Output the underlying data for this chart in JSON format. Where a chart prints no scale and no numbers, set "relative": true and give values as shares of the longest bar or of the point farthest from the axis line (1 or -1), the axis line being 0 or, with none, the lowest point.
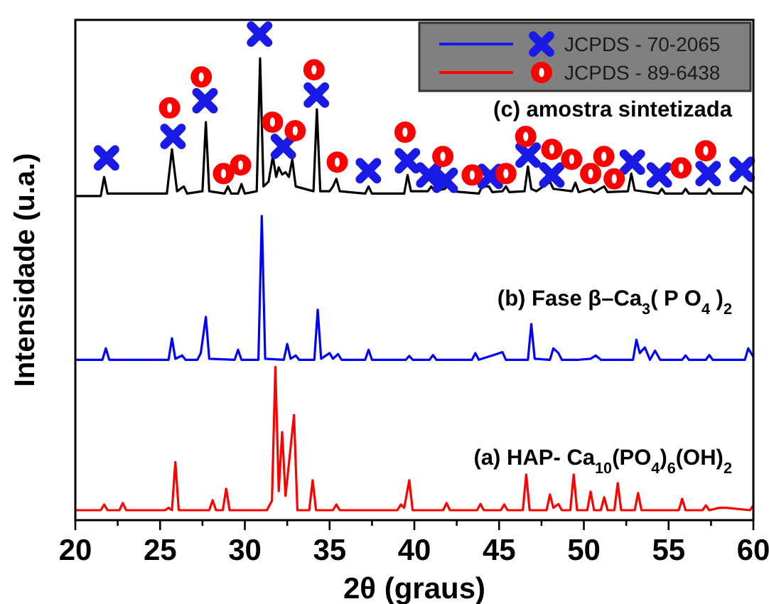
{
  "chart_data": {
    "type": "line",
    "relative": true,
    "xlabel": "2θ (graus)",
    "ylabel": "Intensidade (u.a.)",
    "xlim": [
      20,
      60
    ],
    "xticks": [
      20,
      {
        "value": 22.5,
        "label": null
      },
      25,
      {
        "value": 27.5,
        "label": null
      },
      30,
      {
        "value": 32.5,
        "label": null
      },
      35,
      {
        "value": 37.5,
        "label": null
      },
      40,
      {
        "value": 42.5,
        "label": null
      },
      45,
      {
        "value": 47.5,
        "label": null
      },
      50,
      {
        "value": 52.5,
        "label": null
      },
      55,
      {
        "value": 57.5,
        "label": null
      },
      60
    ],
    "legend": "top right",
    "grid": false,
    "line_style": "solid",
    "annotations": [
      "(c) amostra sintetizada",
      "(b) Fase β–Ca$_{3}$( P O$_{4}$ )$_{2}$",
      "(a) HAP- Ca$_{10}$(PO$_{4}$)$_{6}$(OH)$_{2}$"
    ],
    "series": [
      {
        "color": "#000000",
        "x": [
          20,
          21.5,
          21.7,
          21.9,
          25.4,
          25.7,
          26.0,
          26.4,
          26.6,
          27.5,
          27.7,
          27.9,
          28.8,
          29.0,
          29.2,
          29.6,
          29.8,
          30.0,
          30.7,
          30.9,
          31.1,
          31.4,
          31.65,
          31.85,
          32.0,
          32.2,
          32.4,
          32.6,
          32.8,
          33.0,
          34.05,
          34.25,
          34.45,
          35.0,
          35.2,
          35.4,
          35.6,
          37.1,
          37.3,
          37.5,
          39.4,
          39.6,
          39.8,
          40.8,
          41.0,
          41.2,
          41.8,
          42.0,
          42.2,
          43.8,
          44.0,
          44.4,
          44.6,
          45.2,
          45.4,
          45.6,
          46.5,
          46.7,
          46.9,
          47.2,
          48.0,
          48.2,
          49.3,
          49.5,
          49.7,
          50.4,
          50.6,
          51.2,
          51.4,
          52.6,
          52.8,
          53.0,
          54.4,
          54.6,
          54.8,
          55.8,
          56.0,
          56.2,
          57.2,
          57.4,
          57.6,
          59.3,
          59.5,
          60
        ],
        "values": [
          0.66,
          0.66,
          0.7,
          0.665,
          0.665,
          0.758,
          0.67,
          0.68,
          0.665,
          0.67,
          0.815,
          0.67,
          0.665,
          0.68,
          0.665,
          0.665,
          0.685,
          0.665,
          0.67,
          0.949,
          0.68,
          0.69,
          0.743,
          0.7,
          0.72,
          0.705,
          0.71,
          0.7,
          0.737,
          0.68,
          0.67,
          0.842,
          0.67,
          0.67,
          0.68,
          0.696,
          0.67,
          0.665,
          0.68,
          0.665,
          0.665,
          0.704,
          0.67,
          0.67,
          0.68,
          0.67,
          0.675,
          0.685,
          0.67,
          0.665,
          0.68,
          0.68,
          0.668,
          0.67,
          0.68,
          0.668,
          0.67,
          0.722,
          0.675,
          0.67,
          0.69,
          0.675,
          0.67,
          0.688,
          0.668,
          0.675,
          0.668,
          0.68,
          0.668,
          0.67,
          0.707,
          0.672,
          0.665,
          0.675,
          0.665,
          0.665,
          0.675,
          0.665,
          0.665,
          0.675,
          0.665,
          0.665,
          0.68,
          0.665
        ]
      },
      {
        "color": "#0000ff",
        "x": [
          20,
          21.6,
          21.8,
          22.0,
          25.5,
          25.7,
          25.9,
          26.3,
          26.5,
          27.2,
          27.4,
          27.7,
          27.9,
          29.4,
          29.6,
          29.8,
          30.8,
          31.0,
          31.2,
          32.3,
          32.5,
          32.7,
          33.0,
          33.2,
          34.1,
          34.3,
          34.5,
          35.0,
          35.2,
          35.5,
          35.7,
          37.1,
          37.3,
          37.5,
          39.5,
          39.7,
          39.9,
          40.9,
          41.1,
          41.3,
          43.4,
          43.6,
          43.8,
          44.6,
          45.2,
          45.4,
          46.7,
          46.9,
          47.1,
          48.0,
          48.2,
          48.5,
          48.7,
          49.7,
          50.4,
          50.7,
          51.0,
          52.9,
          53.1,
          53.3,
          53.6,
          53.9,
          54.2,
          54.5,
          55.8,
          56.0,
          56.2,
          57.2,
          57.4,
          57.6,
          59.5,
          59.7,
          60
        ],
        "values": [
          0.316,
          0.316,
          0.34,
          0.316,
          0.316,
          0.361,
          0.318,
          0.325,
          0.316,
          0.316,
          0.33,
          0.406,
          0.318,
          0.316,
          0.337,
          0.316,
          0.316,
          0.618,
          0.318,
          0.316,
          0.349,
          0.318,
          0.325,
          0.316,
          0.316,
          0.421,
          0.318,
          0.33,
          0.318,
          0.328,
          0.316,
          0.316,
          0.337,
          0.316,
          0.316,
          0.324,
          0.316,
          0.316,
          0.326,
          0.316,
          0.316,
          0.33,
          0.316,
          0.325,
          0.332,
          0.316,
          0.316,
          0.391,
          0.318,
          0.316,
          0.34,
          0.33,
          0.316,
          0.316,
          0.318,
          0.325,
          0.316,
          0.316,
          0.358,
          0.33,
          0.342,
          0.316,
          0.335,
          0.316,
          0.316,
          0.325,
          0.316,
          0.316,
          0.326,
          0.316,
          0.316,
          0.34,
          0.322
        ]
      },
      {
        "color": "#ff0000",
        "x": [
          20,
          21.5,
          21.7,
          21.9,
          22.6,
          22.8,
          23.0,
          25.3,
          25.5,
          25.7,
          25.9,
          26.1,
          27.9,
          28.1,
          28.3,
          28.7,
          28.9,
          29.1,
          31.3,
          31.6,
          31.8,
          32.0,
          32.2,
          32.4,
          32.9,
          33.1,
          33.8,
          34.0,
          34.2,
          35.2,
          35.4,
          35.6,
          39.0,
          39.2,
          39.4,
          39.7,
          39.9,
          41.7,
          41.9,
          42.1,
          43.7,
          43.9,
          44.1,
          45.1,
          45.3,
          45.5,
          46.4,
          46.6,
          46.8,
          47.8,
          48.0,
          48.2,
          48.5,
          48.7,
          49.2,
          49.4,
          49.6,
          50.2,
          50.4,
          50.6,
          51.0,
          51.2,
          51.4,
          51.8,
          52.0,
          52.2,
          53.0,
          53.2,
          53.4,
          55.6,
          55.8,
          56.0,
          57.0,
          57.2,
          57.4,
          58.0,
          58.4,
          59.8,
          60
        ],
        "values": [
          0,
          0,
          0.012,
          0,
          0,
          0.015,
          0,
          0,
          0.005,
          0,
          0.101,
          0,
          0,
          0.021,
          0,
          0,
          0.045,
          0,
          0,
          0.02,
          0.301,
          0.04,
          0.164,
          0.03,
          0.2,
          0,
          0,
          0.063,
          0,
          0,
          0.012,
          0,
          0,
          0.012,
          0.005,
          0.063,
          0,
          0,
          0.015,
          0,
          0,
          0.013,
          0,
          0,
          0.012,
          0,
          0,
          0.075,
          0,
          0,
          0.033,
          0.005,
          0.013,
          0,
          0,
          0.075,
          0,
          0,
          0.039,
          0,
          0,
          0.027,
          0,
          0,
          0.057,
          0,
          0,
          0.036,
          0,
          0,
          0.024,
          0,
          0,
          0.01,
          0,
          0.005,
          0.005,
          0,
          0.01
        ]
      },
      {
        "type": "scatter",
        "name": "JCPDS - 70-2065",
        "marker": "cross",
        "color": "#1a1ae6",
        "x": [
          21.84,
          25.76,
          27.65,
          30.87,
          32.27,
          34.22,
          37.29,
          39.59,
          40.85,
          41.82,
          44.48,
          46.71,
          48.11,
          52.86,
          54.45,
          57.33,
          59.34
        ],
        "values": [
          0.74,
          0.785,
          0.86,
          1,
          0.764,
          0.872,
          0.713,
          0.734,
          0.704,
          0.693,
          0.701,
          0.746,
          0.704,
          0.731,
          0.704,
          0.707,
          0.716
        ]
      },
      {
        "type": "scatter",
        "name": "JCPDS - 89-6438",
        "marker": "circle",
        "color": "#ff0000",
        "x": [
          25.56,
          27.43,
          28.74,
          29.75,
          31.63,
          32.97,
          34.08,
          35.45,
          39.45,
          41.68,
          43.41,
          45.4,
          46.57,
          48.11,
          49.28,
          50.4,
          51.18,
          51.79,
          55.73,
          57.19
        ],
        "values": [
          0.845,
          0.91,
          0.707,
          0.725,
          0.815,
          0.797,
          0.925,
          0.731,
          0.794,
          0.743,
          0.704,
          0.707,
          0.785,
          0.758,
          0.737,
          0.707,
          0.743,
          0.696,
          0.719,
          0.755
        ]
      }
    ]
  }
}
